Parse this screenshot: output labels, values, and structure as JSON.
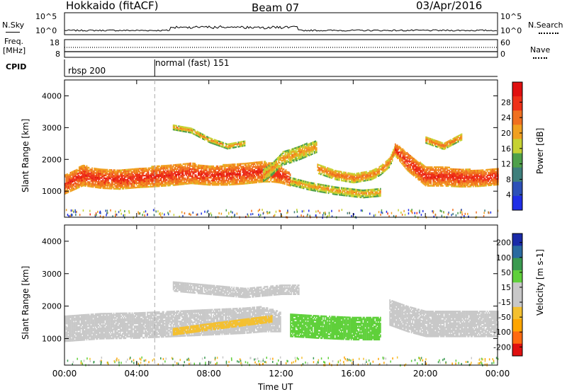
{
  "header": {
    "station": "Hokkaido (fitACF)",
    "beam": "Beam 07",
    "date": "03/Apr/2016"
  },
  "noise_panel": {
    "left_label": "N.Sky",
    "left_ticks": [
      "10^5",
      "10^0"
    ],
    "right_ticks": [
      "10^5",
      "10^0"
    ],
    "right_label": "N.Search"
  },
  "freq_panel": {
    "left_label_1": "Freq.",
    "left_label_2": "[MHz]",
    "left_ticks": [
      "18",
      "8"
    ],
    "right_ticks": [
      "60",
      "0"
    ],
    "right_label": "Nave"
  },
  "cpid": {
    "label": "CPID",
    "segments": [
      {
        "name": "rbsp 200",
        "start_hour": 0.0
      },
      {
        "name": "normal (fast) 151",
        "start_hour": 5.0
      }
    ]
  },
  "colors": {
    "power": [
      "#1f2ee6",
      "#2c50b8",
      "#3e7f7c",
      "#4ea04a",
      "#c6d232",
      "#f0a020",
      "#f07020",
      "#ee3018",
      "#e01010"
    ],
    "velocity": [
      "#e01010",
      "#ff6a10",
      "#ffa500",
      "#f4c030",
      "#c8c8c8",
      "#c8c8c8",
      "#5fd03a",
      "#3a9a50",
      "#2a6aa0",
      "#1a2aa8"
    ],
    "ground_scatter": "#c8c8c8"
  },
  "chart_data": [
    {
      "type": "heatmap",
      "panel": "power",
      "ylabel": "Slant Range [km]",
      "xlabel": "Time UT",
      "xlim": [
        0,
        24
      ],
      "ylim": [
        180,
        4500
      ],
      "x_ticks": [
        "00:00",
        "04:00",
        "08:00",
        "12:00",
        "16:00",
        "20:00",
        "00:00"
      ],
      "y_ticks": [
        1000,
        2000,
        3000,
        4000
      ],
      "colorbar": {
        "label": "Power [dB]",
        "ticks": [
          "4",
          "8",
          "12",
          "16",
          "20",
          "24",
          "28"
        ],
        "range": [
          0,
          30
        ]
      },
      "bands": [
        {
          "name": "main",
          "times": [
            0,
            1,
            2,
            3,
            4,
            5,
            6,
            7,
            8,
            9,
            10,
            11,
            11.5,
            12,
            12.5
          ],
          "center_km": [
            1200,
            1480,
            1380,
            1350,
            1400,
            1450,
            1500,
            1550,
            1480,
            1500,
            1550,
            1600,
            1580,
            1500,
            1350
          ],
          "half_width_km": [
            300,
            320,
            300,
            300,
            300,
            320,
            330,
            320,
            300,
            320,
            330,
            320,
            300,
            260,
            200
          ],
          "power_db": 28
        },
        {
          "name": "rising",
          "times": [
            11,
            11.5,
            12,
            12.5,
            13,
            13.5,
            14
          ],
          "center_km": [
            1500,
            1700,
            2000,
            2100,
            2200,
            2300,
            2400
          ],
          "half_width_km": [
            200,
            200,
            200,
            220,
            220,
            200,
            180
          ],
          "power_db": 22
        },
        {
          "name": "wedge",
          "times": [
            14,
            15,
            16,
            17,
            17.5,
            18,
            18.3
          ],
          "center_km": [
            1700,
            1500,
            1400,
            1500,
            1650,
            1900,
            2300
          ],
          "half_width_km": [
            150,
            150,
            150,
            150,
            150,
            150,
            150
          ],
          "power_db": 24
        },
        {
          "name": "lower",
          "times": [
            12.5,
            13.5,
            15,
            16.5,
            17.5
          ],
          "center_km": [
            1300,
            1150,
            1000,
            900,
            950
          ],
          "half_width_km": [
            120,
            120,
            120,
            120,
            120
          ],
          "power_db": 22
        },
        {
          "name": "evening",
          "times": [
            18.3,
            19,
            20,
            21,
            22,
            23,
            24
          ],
          "center_km": [
            2300,
            1900,
            1450,
            1450,
            1400,
            1400,
            1450
          ],
          "half_width_km": [
            200,
            280,
            300,
            300,
            280,
            260,
            260
          ],
          "power_db": 28
        },
        {
          "name": "upper-arc",
          "times": [
            6,
            7,
            8,
            9,
            10
          ],
          "center_km": [
            3000,
            2900,
            2600,
            2400,
            2500
          ],
          "half_width_km": [
            80,
            80,
            80,
            80,
            80
          ],
          "power_db": 22
        },
        {
          "name": "upper-right",
          "times": [
            20,
            21,
            22
          ],
          "center_km": [
            2600,
            2400,
            2700
          ],
          "half_width_km": [
            100,
            100,
            100
          ],
          "power_db": 24
        }
      ]
    },
    {
      "type": "heatmap",
      "panel": "velocity",
      "ylabel": "Slant Range [km]",
      "xlabel": "Time UT",
      "xlim": [
        0,
        24
      ],
      "ylim": [
        180,
        4500
      ],
      "x_ticks": [
        "00:00",
        "04:00",
        "08:00",
        "12:00",
        "16:00",
        "20:00",
        "00:00"
      ],
      "y_ticks": [
        1000,
        2000,
        3000,
        4000
      ],
      "colorbar": {
        "label": "Velocity [m s-1]",
        "ticks": [
          "200",
          "100",
          "50",
          "15",
          "-15",
          "-50",
          "-100",
          "-200"
        ],
        "range": [
          -250,
          250
        ]
      },
      "bands": [
        {
          "name": "main",
          "times": [
            0,
            2,
            4,
            6,
            8,
            10,
            11,
            12
          ],
          "center_km": [
            1300,
            1380,
            1400,
            1450,
            1500,
            1550,
            1580,
            1500
          ],
          "half_width_km": [
            400,
            400,
            400,
            400,
            400,
            400,
            380,
            300
          ],
          "velocity": 0
        },
        {
          "name": "green-block",
          "times": [
            12.5,
            14,
            16,
            17.5
          ],
          "center_km": [
            1400,
            1350,
            1300,
            1300
          ],
          "half_width_km": [
            350,
            350,
            350,
            350
          ],
          "velocity": 40
        },
        {
          "name": "evening",
          "times": [
            18,
            19,
            20,
            22,
            24
          ],
          "center_km": [
            1800,
            1600,
            1450,
            1450,
            1450
          ],
          "half_width_km": [
            400,
            400,
            400,
            400,
            400
          ],
          "velocity": 0
        },
        {
          "name": "upper",
          "times": [
            6,
            8,
            10,
            12,
            13
          ],
          "center_km": [
            2600,
            2500,
            2400,
            2500,
            2500
          ],
          "half_width_km": [
            150,
            150,
            150,
            150,
            150
          ],
          "velocity": 0
        },
        {
          "name": "orange-spots",
          "times": [
            6,
            8,
            11.5
          ],
          "center_km": [
            1200,
            1350,
            1600
          ],
          "half_width_km": [
            100,
            100,
            100
          ],
          "velocity": -40
        }
      ]
    }
  ]
}
